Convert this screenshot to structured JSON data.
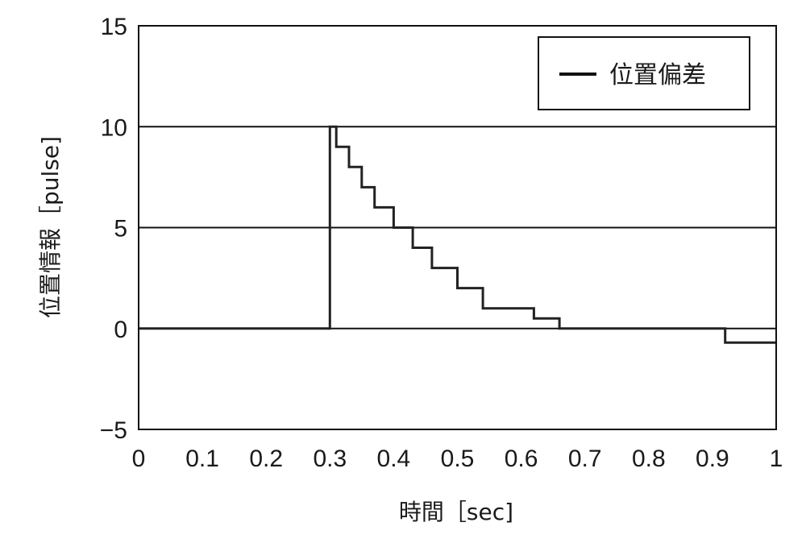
{
  "chart_data": {
    "type": "line",
    "title": "",
    "xlabel": "時間［sec]",
    "ylabel": "位置情報［pulse]",
    "xlim": [
      0,
      1
    ],
    "ylim": [
      -5,
      15
    ],
    "xticks": [
      0,
      0.1,
      0.2,
      0.3,
      0.4,
      0.5,
      0.6,
      0.7,
      0.8,
      0.9,
      1
    ],
    "xtick_labels": [
      "0",
      "0.1",
      "0.2",
      "0.3",
      "0.4",
      "0.5",
      "0.6",
      "0.7",
      "0.8",
      "0.9",
      "1"
    ],
    "yticks": [
      -5,
      0,
      5,
      10,
      15
    ],
    "ytick_labels": [
      "−5",
      "0",
      "5",
      "10",
      "15"
    ],
    "grid": "horizontal at 5 and 10",
    "legend": {
      "placement": "top-right",
      "entries": [
        "位置偏差"
      ]
    },
    "series": [
      {
        "name": "位置偏差",
        "color": "#222222",
        "x": [
          0,
          0.3,
          0.3,
          0.31,
          0.31,
          0.33,
          0.33,
          0.35,
          0.35,
          0.37,
          0.37,
          0.4,
          0.4,
          0.43,
          0.43,
          0.46,
          0.46,
          0.5,
          0.5,
          0.54,
          0.54,
          0.62,
          0.62,
          0.66,
          0.66,
          0.92,
          0.92,
          1.0
        ],
        "y": [
          0,
          0,
          10,
          10,
          9,
          9,
          8,
          8,
          7,
          7,
          6,
          6,
          5,
          5,
          4,
          4,
          3,
          3,
          2,
          2,
          1,
          1,
          0.5,
          0.5,
          0,
          0,
          -0.7,
          -0.7
        ]
      }
    ]
  }
}
